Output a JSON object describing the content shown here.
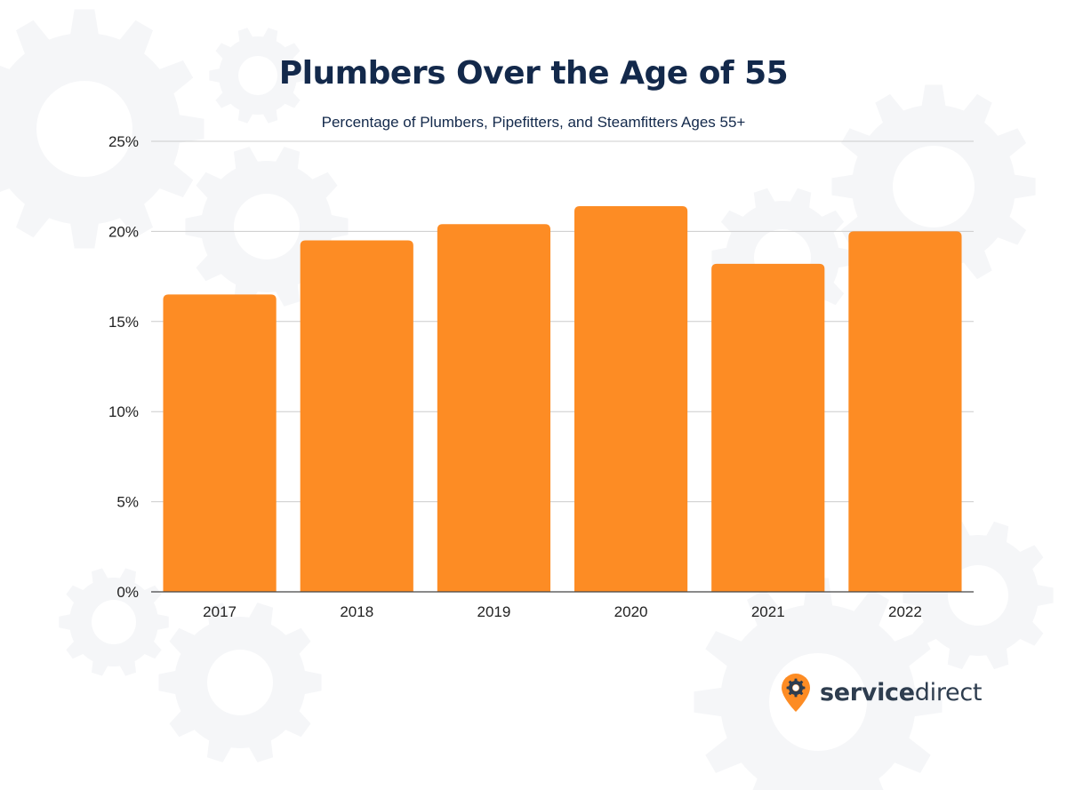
{
  "chart_data": {
    "type": "bar",
    "title": "Plumbers Over the Age of 55",
    "subtitle": "Percentage of Plumbers, Pipefitters, and Steamfitters Ages 55+",
    "categories": [
      "2017",
      "2018",
      "2019",
      "2020",
      "2021",
      "2022"
    ],
    "values": [
      16.5,
      19.5,
      20.4,
      21.4,
      18.2,
      20.0
    ],
    "ylim": [
      0,
      25
    ],
    "yticks": [
      {
        "value": 0,
        "label": "0%"
      },
      {
        "value": 5,
        "label": "5%"
      },
      {
        "value": 10,
        "label": "10%"
      },
      {
        "value": 15,
        "label": "15%"
      },
      {
        "value": 20,
        "label": "20%"
      },
      {
        "value": 25,
        "label": "25%"
      }
    ],
    "grid": true,
    "legend": "none",
    "bar_color": "#fd8c24",
    "title_color": "#13294b",
    "grid_color": "#cccccc"
  },
  "brand": {
    "name_bold": "service",
    "name_light": "direct",
    "icon": "gear-location-pin-icon",
    "pin_color": "#fd8c24",
    "text_color": "#2e3d4f"
  },
  "background": {
    "icon": "gear-icon",
    "color": "#f5f6f8"
  }
}
